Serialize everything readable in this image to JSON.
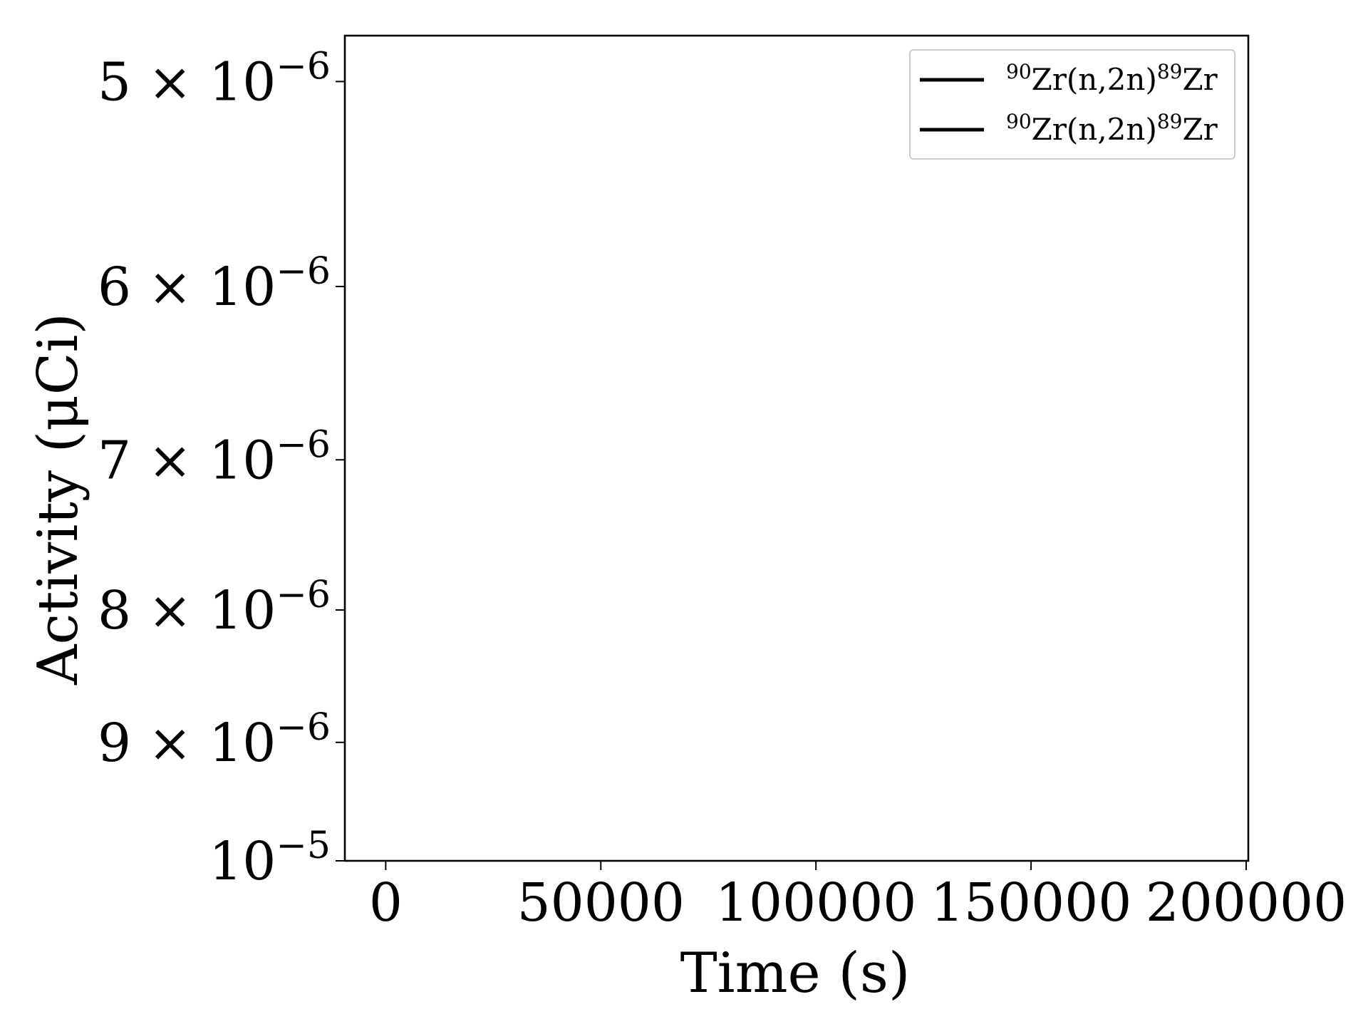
{
  "chart_data": {
    "type": "line",
    "title": "",
    "xlabel": "Time (s)",
    "ylabel": "Activity (μCi)",
    "xlim": [
      -9500,
      200500
    ],
    "ylim": [
      1e-05,
      4.8e-06
    ],
    "y_scale": "log",
    "y_axis_inverted": true,
    "grid": false,
    "x_ticks": [
      {
        "value": 0,
        "label": "0"
      },
      {
        "value": 50000,
        "label": "50000"
      },
      {
        "value": 100000,
        "label": "100000"
      },
      {
        "value": 150000,
        "label": "150000"
      },
      {
        "value": 200000,
        "label": "200000"
      }
    ],
    "y_ticks": [
      {
        "value": 5e-06,
        "mantissa": "5",
        "base": "10",
        "exponent": "−6"
      },
      {
        "value": 6e-06,
        "mantissa": "6",
        "base": "10",
        "exponent": "−6"
      },
      {
        "value": 7e-06,
        "mantissa": "7",
        "base": "10",
        "exponent": "−6"
      },
      {
        "value": 8e-06,
        "mantissa": "8",
        "base": "10",
        "exponent": "−6"
      },
      {
        "value": 9e-06,
        "mantissa": "9",
        "base": "10",
        "exponent": "−6"
      },
      {
        "value": 1e-05,
        "mantissa": "",
        "base": "10",
        "exponent": "−5"
      }
    ],
    "legend": {
      "placement": "top-right",
      "entries": [
        {
          "pre": "90",
          "mid": "Zr(n,2n)",
          "post": "89",
          "end": "Zr",
          "color": "#000000"
        },
        {
          "pre": "90",
          "mid": "Zr(n,2n)",
          "post": "89",
          "end": "Zr",
          "color": "#000000"
        }
      ]
    },
    "series": [
      {
        "name": "⁹⁰Zr(n,2n)⁸⁹Zr",
        "color": "#000000",
        "x": [],
        "y": []
      },
      {
        "name": "⁹⁰Zr(n,2n)⁸⁹Zr",
        "color": "#000000",
        "x": [],
        "y": []
      }
    ],
    "colors": {
      "axis": "#000000",
      "background": "#ffffff",
      "legend_border": "#cccccc"
    }
  }
}
